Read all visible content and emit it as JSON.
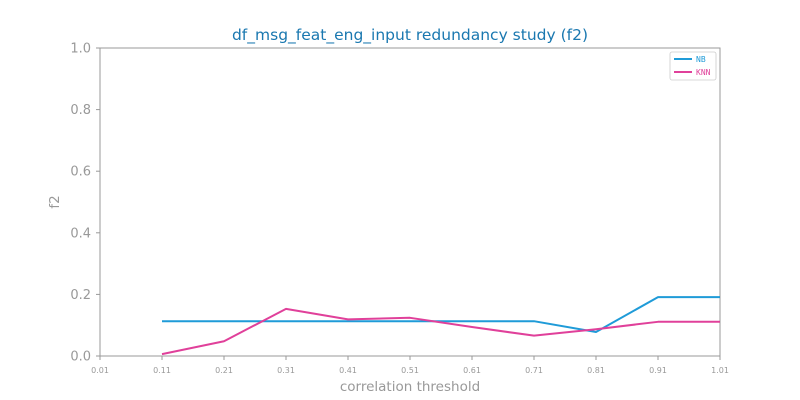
{
  "chart_data": {
    "type": "line",
    "title": "df_msg_feat_eng_input redundancy study (f2)",
    "xlabel": "correlation threshold",
    "ylabel": "f2",
    "x": [
      0.11,
      0.21,
      0.31,
      0.41,
      0.51,
      0.61,
      0.71,
      0.81,
      0.91,
      1.01
    ],
    "x_tick_labels": [
      "0.01",
      "0.11",
      "0.21",
      "0.31",
      "0.41",
      "0.51",
      "0.61",
      "0.71",
      "0.81",
      "0.91",
      "1.01"
    ],
    "y_tick_labels": [
      "0.0",
      "0.2",
      "0.4",
      "0.6",
      "0.8",
      "1.0"
    ],
    "xlim": [
      0.01,
      1.01
    ],
    "ylim": [
      0.0,
      1.0
    ],
    "grid": false,
    "legend_position": "top-right",
    "series": [
      {
        "name": "NB",
        "color": "#1f9bd8",
        "values": [
          0.113,
          0.113,
          0.113,
          0.113,
          0.113,
          0.113,
          0.113,
          0.078,
          0.191,
          0.191
        ]
      },
      {
        "name": "KNN",
        "color": "#e0409a",
        "values": [
          0.006,
          0.048,
          0.153,
          0.119,
          0.124,
          0.094,
          0.066,
          0.087,
          0.111,
          0.111
        ]
      }
    ]
  }
}
